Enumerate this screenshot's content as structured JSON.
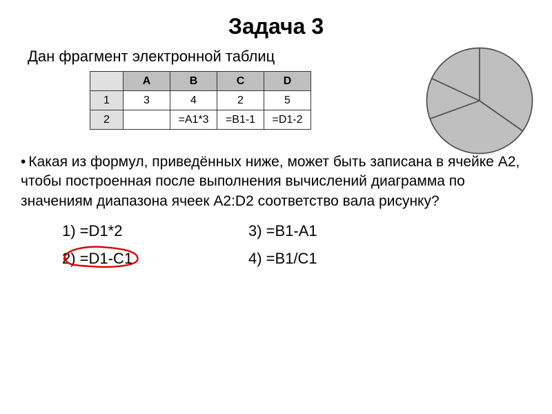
{
  "title": "Задача 3",
  "intro": "Дан фрагмент электронной таблиц",
  "table": {
    "columns": [
      "",
      "A",
      "B",
      "C",
      "D"
    ],
    "rows": [
      [
        "1",
        "3",
        "4",
        "2",
        "5"
      ],
      [
        "2",
        "",
        "=A1*3",
        "=B1-1",
        "=D1-2"
      ]
    ],
    "header_bg": "#bfbfbf",
    "rowhdr_bg": "#e0e0e0",
    "border": "#333333",
    "fontsize": 16
  },
  "pie": {
    "type": "pie",
    "fill": "#bfbfbf",
    "stroke": "#4d4d4d",
    "stroke_width": 2,
    "slices_deg": [
      125,
      125,
      45,
      65
    ],
    "start_angle_deg": 90
  },
  "question": "Какая из формул, приведённых ниже, может быть записана в ячейке A2, чтобы построенная после выполнения вычислений диаграмма по значениям диапазона ячеек A2:D2 соответство вала рисунку?",
  "options": {
    "o1": "1) =D1*2",
    "o2": "2) =D1-C1",
    "o3": "3) =B1-A1",
    "o4": "4) =B1/C1"
  },
  "answer_ellipse": {
    "stroke": "#d80000",
    "stroke_width": 3
  }
}
